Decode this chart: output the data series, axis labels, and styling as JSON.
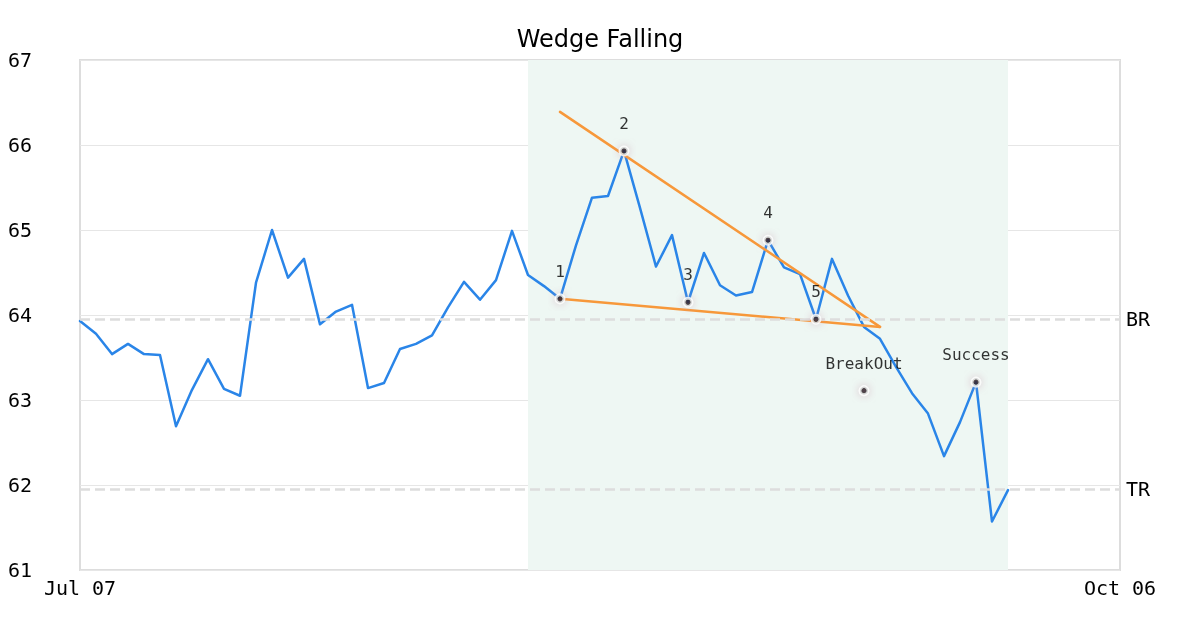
{
  "chart_data": {
    "type": "line",
    "title": "Wedge Falling",
    "marker": "none",
    "grid": "y",
    "line_style": "solid",
    "categories": [
      "Jul 07",
      null,
      null,
      null,
      null,
      null,
      null,
      null,
      null,
      null,
      null,
      null,
      null,
      null,
      null,
      null,
      null,
      null,
      null,
      null,
      null,
      null,
      null,
      null,
      null,
      null,
      null,
      null,
      null,
      null,
      null,
      null,
      null,
      null,
      null,
      null,
      null,
      null,
      null,
      null,
      null,
      null,
      null,
      null,
      null,
      null,
      null,
      null,
      null,
      null,
      null,
      null,
      null,
      null,
      null,
      null,
      null,
      null,
      null,
      null,
      null,
      null,
      null,
      null,
      null,
      "Oct 06"
    ],
    "ylim": [
      61,
      67
    ],
    "yticks": [
      61,
      62,
      63,
      64,
      65,
      66,
      67
    ],
    "series": [
      {
        "color": "#2a85e8",
        "values": [
          63.93,
          63.78,
          63.54,
          63.66,
          63.54,
          63.53,
          62.69,
          63.12,
          63.48,
          63.13,
          63.05,
          64.38,
          65.0,
          64.44,
          64.66,
          63.89,
          64.04,
          64.12,
          63.14,
          63.2,
          63.6,
          63.66,
          63.76,
          64.09,
          64.39,
          64.18,
          64.41,
          64.99,
          64.47,
          64.34,
          64.19,
          64.82,
          65.38,
          65.4,
          65.93,
          65.26,
          64.57,
          64.94,
          64.15,
          64.73,
          64.35,
          64.23,
          64.27,
          64.88,
          64.56,
          64.48,
          63.95,
          64.66,
          64.23,
          63.86,
          63.72,
          63.39,
          63.08,
          62.84,
          62.34,
          62.74,
          63.21,
          61.57,
          61.94,
          null,
          null,
          null,
          null,
          null,
          null,
          null
        ]
      },
      {
        "type": "line",
        "color": "#f7983a",
        "values": [
          null,
          null,
          null,
          null,
          null,
          null,
          null,
          null,
          null,
          null,
          null,
          null,
          null,
          null,
          null,
          null,
          null,
          null,
          null,
          null,
          null,
          null,
          null,
          null,
          null,
          null,
          null,
          null,
          null,
          null,
          66.39,
          null,
          null,
          null,
          null,
          null,
          null,
          null,
          null,
          null,
          null,
          null,
          null,
          null,
          null,
          null,
          null,
          null,
          null,
          null,
          63.86,
          null,
          null,
          null,
          null,
          null,
          null,
          null,
          null,
          null,
          null,
          null,
          null,
          null,
          null,
          null
        ]
      },
      {
        "type": "line",
        "color": "#f7983a",
        "values": [
          null,
          null,
          null,
          null,
          null,
          null,
          null,
          null,
          null,
          null,
          null,
          null,
          null,
          null,
          null,
          null,
          null,
          null,
          null,
          null,
          null,
          null,
          null,
          null,
          null,
          null,
          null,
          null,
          null,
          null,
          64.19,
          null,
          null,
          null,
          null,
          null,
          null,
          null,
          null,
          null,
          null,
          null,
          null,
          null,
          null,
          null,
          null,
          null,
          null,
          null,
          63.86,
          null,
          null,
          null,
          null,
          null,
          null,
          null,
          null,
          null,
          null,
          null,
          null,
          null,
          null,
          null
        ]
      },
      {
        "type": "scatter",
        "marker": "circle",
        "name": "1",
        "color": "#000000",
        "values": [
          null,
          null,
          null,
          null,
          null,
          null,
          null,
          null,
          null,
          null,
          null,
          null,
          null,
          null,
          null,
          null,
          null,
          null,
          null,
          null,
          null,
          null,
          null,
          null,
          null,
          null,
          null,
          null,
          null,
          null,
          64.19,
          null,
          null,
          null,
          null,
          null,
          null,
          null,
          null,
          null,
          null,
          null,
          null,
          null,
          null,
          null,
          null,
          null,
          null,
          null,
          null,
          null,
          null,
          null,
          null,
          null,
          null,
          null,
          null,
          null,
          null,
          null,
          null,
          null,
          null,
          null
        ]
      },
      {
        "type": "scatter",
        "marker": "circle",
        "name": "2",
        "color": "#000000",
        "values": [
          null,
          null,
          null,
          null,
          null,
          null,
          null,
          null,
          null,
          null,
          null,
          null,
          null,
          null,
          null,
          null,
          null,
          null,
          null,
          null,
          null,
          null,
          null,
          null,
          null,
          null,
          null,
          null,
          null,
          null,
          null,
          null,
          null,
          null,
          65.93,
          null,
          null,
          null,
          null,
          null,
          null,
          null,
          null,
          null,
          null,
          null,
          null,
          null,
          null,
          null,
          null,
          null,
          null,
          null,
          null,
          null,
          null,
          null,
          null,
          null,
          null,
          null,
          null,
          null,
          null,
          null
        ]
      },
      {
        "type": "scatter",
        "marker": "circle",
        "name": "3",
        "color": "#000000",
        "values": [
          null,
          null,
          null,
          null,
          null,
          null,
          null,
          null,
          null,
          null,
          null,
          null,
          null,
          null,
          null,
          null,
          null,
          null,
          null,
          null,
          null,
          null,
          null,
          null,
          null,
          null,
          null,
          null,
          null,
          null,
          null,
          null,
          null,
          null,
          null,
          null,
          null,
          null,
          64.15,
          null,
          null,
          null,
          null,
          null,
          null,
          null,
          null,
          null,
          null,
          null,
          null,
          null,
          null,
          null,
          null,
          null,
          null,
          null,
          null,
          null,
          null,
          null,
          null,
          null,
          null,
          null
        ]
      },
      {
        "type": "scatter",
        "marker": "circle",
        "name": "4",
        "color": "#000000",
        "values": [
          null,
          null,
          null,
          null,
          null,
          null,
          null,
          null,
          null,
          null,
          null,
          null,
          null,
          null,
          null,
          null,
          null,
          null,
          null,
          null,
          null,
          null,
          null,
          null,
          null,
          null,
          null,
          null,
          null,
          null,
          null,
          null,
          null,
          null,
          null,
          null,
          null,
          null,
          null,
          null,
          null,
          null,
          null,
          64.88,
          null,
          null,
          null,
          null,
          null,
          null,
          null,
          null,
          null,
          null,
          null,
          null,
          null,
          null,
          null,
          null,
          null,
          null,
          null,
          null,
          null,
          null
        ]
      },
      {
        "type": "scatter",
        "marker": "circle",
        "name": "5",
        "color": "#000000",
        "values": [
          null,
          null,
          null,
          null,
          null,
          null,
          null,
          null,
          null,
          null,
          null,
          null,
          null,
          null,
          null,
          null,
          null,
          null,
          null,
          null,
          null,
          null,
          null,
          null,
          null,
          null,
          null,
          null,
          null,
          null,
          null,
          null,
          null,
          null,
          null,
          null,
          null,
          null,
          null,
          null,
          null,
          null,
          null,
          null,
          null,
          null,
          63.95,
          null,
          null,
          null,
          null,
          null,
          null,
          null,
          null,
          null,
          null,
          null,
          null,
          null,
          null,
          null,
          null,
          null,
          null,
          null
        ]
      },
      {
        "type": "scatter",
        "marker": "circle",
        "name": "BreakOut",
        "color": "#000000",
        "values": [
          null,
          null,
          null,
          null,
          null,
          null,
          null,
          null,
          null,
          null,
          null,
          null,
          null,
          null,
          null,
          null,
          null,
          null,
          null,
          null,
          null,
          null,
          null,
          null,
          null,
          null,
          null,
          null,
          null,
          null,
          null,
          null,
          null,
          null,
          null,
          null,
          null,
          null,
          null,
          null,
          null,
          null,
          null,
          null,
          null,
          null,
          null,
          null,
          null,
          63.11,
          null,
          null,
          null,
          null,
          null,
          null,
          null,
          null,
          null,
          null,
          null,
          null,
          null,
          null,
          null,
          null
        ]
      },
      {
        "type": "scatter",
        "marker": "circle",
        "name": "Success",
        "color": "#000000",
        "values": [
          null,
          null,
          null,
          null,
          null,
          null,
          null,
          null,
          null,
          null,
          null,
          null,
          null,
          null,
          null,
          null,
          null,
          null,
          null,
          null,
          null,
          null,
          null,
          null,
          null,
          null,
          null,
          null,
          null,
          null,
          null,
          null,
          null,
          null,
          null,
          null,
          null,
          null,
          null,
          null,
          null,
          null,
          null,
          null,
          null,
          null,
          null,
          null,
          null,
          null,
          null,
          null,
          null,
          null,
          null,
          null,
          63.21,
          null,
          null,
          null,
          null,
          null,
          null,
          null,
          null,
          null
        ]
      }
    ],
    "ref_lines": [
      {
        "axis": "y",
        "value": 63.95,
        "label": "BR",
        "color": "#dddddd",
        "line_style": "dashed"
      },
      {
        "axis": "y",
        "value": 61.95,
        "label": "TR",
        "color": "#dddddd",
        "line_style": "dashed"
      }
    ]
  }
}
